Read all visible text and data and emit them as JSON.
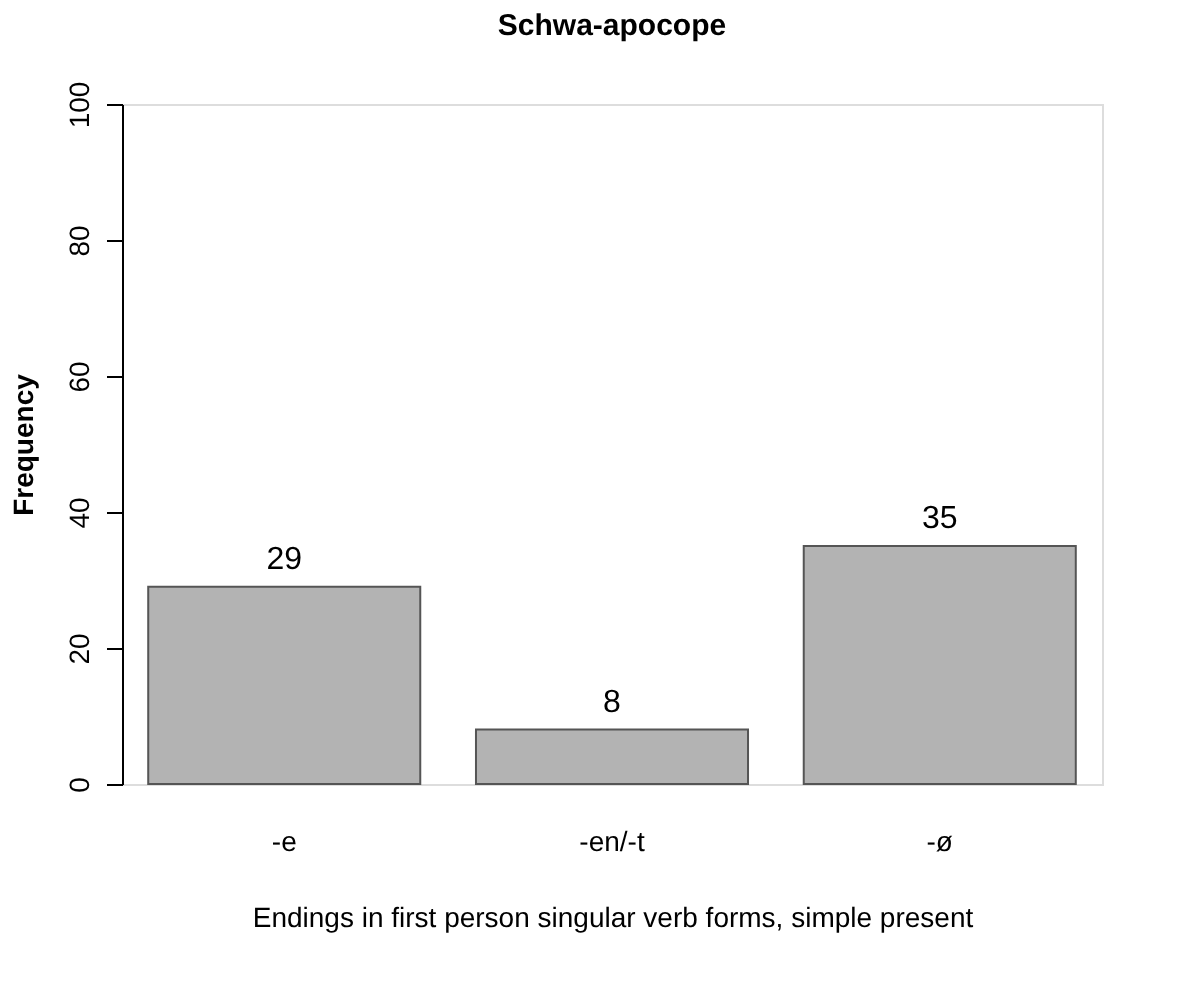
{
  "chart_data": {
    "type": "bar",
    "title": "Schwa-apocope",
    "xlabel": "Endings in first person singular verb forms, simple present",
    "ylabel": "Frequency",
    "categories": [
      "-e",
      "-en/-t",
      "-ø"
    ],
    "values": [
      29,
      8,
      35
    ],
    "color": "#b3b3b3",
    "ylim": [
      0,
      100
    ],
    "yticks": [
      0,
      20,
      40,
      60,
      80,
      100
    ],
    "grid": false,
    "data_labels": true
  }
}
